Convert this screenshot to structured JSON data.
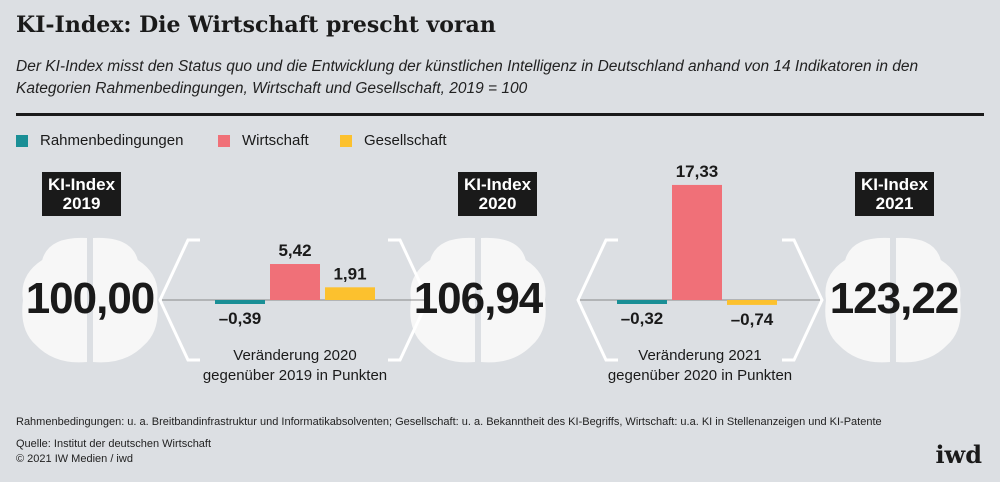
{
  "title": "KI-Index: Die Wirtschaft prescht voran",
  "subtitle": "Der KI-Index misst den Status quo und die Entwicklung der künstlichen Intelligenz in Deutschland anhand von 14 Indikatoren in den Kategorien Rahmenbedingungen, Wirtschaft und Gesellschaft, 2019 = 100",
  "legend": [
    {
      "label": "Rahmenbedingungen",
      "color": "#1a8f96"
    },
    {
      "label": "Wirtschaft",
      "color": "#f07078"
    },
    {
      "label": "Gesellschaft",
      "color": "#fcc12e"
    }
  ],
  "indices": [
    {
      "label": "KI-Index",
      "year": "2019",
      "value": "100,00"
    },
    {
      "label": "KI-Index",
      "year": "2020",
      "value": "106,94"
    },
    {
      "label": "KI-Index",
      "year": "2021",
      "value": "123,22"
    }
  ],
  "chart_data": [
    {
      "type": "bar",
      "categories": [
        "Rahmenbedingungen",
        "Wirtschaft",
        "Gesellschaft"
      ],
      "values": [
        -0.39,
        5.42,
        1.91
      ],
      "labels": [
        "–0,39",
        "5,42",
        "1,91"
      ],
      "caption_line1": "Veränderung 2020",
      "caption_line2": "gegenüber 2019 in Punkten"
    },
    {
      "type": "bar",
      "categories": [
        "Rahmenbedingungen",
        "Wirtschaft",
        "Gesellschaft"
      ],
      "values": [
        -0.32,
        17.33,
        -0.74
      ],
      "labels": [
        "–0,32",
        "17,33",
        "–0,74"
      ],
      "caption_line1": "Veränderung 2021",
      "caption_line2": "gegenüber 2020 in Punkten"
    }
  ],
  "footer": {
    "note": "Rahmenbedingungen: u. a. Breitbandinfrastruktur und Informatikabsolventen; Gesellschaft: u. a. Bekanntheit des KI-Begriffs, Wirtschaft: u.a. KI in Stellenanzeigen und KI-Patente",
    "source": "Quelle: Institut der deutschen Wirtschaft",
    "copyright": "© 2021 IW Medien / iwd",
    "logo": "iwd"
  }
}
